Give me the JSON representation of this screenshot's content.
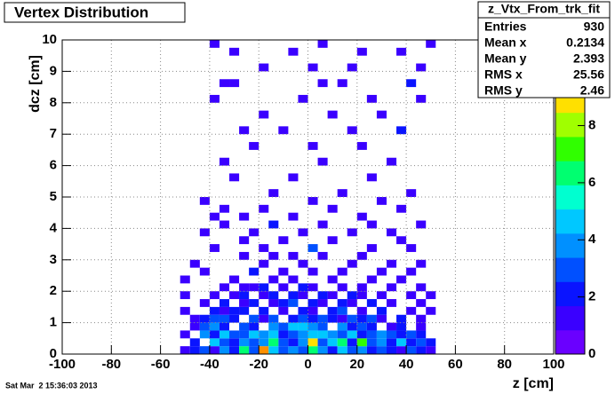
{
  "chart_data": {
    "type": "heatmap",
    "title": "Vertex Distribution",
    "x_label": "z [cm]",
    "y_label": "dcz [cm]",
    "footer": "Sat Mar  2 15:36:03 2013",
    "xlim": [
      -100,
      100
    ],
    "ylim": [
      0,
      10
    ],
    "zlim": [
      0,
      11
    ],
    "xticks": [
      -100,
      -80,
      -60,
      -40,
      -20,
      0,
      20,
      40,
      60,
      80,
      100
    ],
    "yticks": [
      0,
      1,
      2,
      3,
      4,
      5,
      6,
      7,
      8,
      9,
      10
    ],
    "zticks": [
      0,
      2,
      4,
      6,
      8
    ],
    "grid": true,
    "palette": [
      "#6a00ff",
      "#3a00ff",
      "#0a14ff",
      "#0050ff",
      "#0090ff",
      "#00c8ff",
      "#00ffd0",
      "#00ff70",
      "#30ff00",
      "#a0ff00",
      "#ffe000",
      "#ff9000",
      "#ff2000"
    ],
    "xbins": [
      -100,
      -96,
      -92,
      -88,
      -84,
      -80,
      -76,
      -72,
      -68,
      -64,
      -60,
      -56,
      -52,
      -48,
      -44,
      -40,
      -36,
      -32,
      -28,
      -24,
      -20,
      -16,
      -12,
      -8,
      -4,
      0,
      4,
      8,
      12,
      16,
      20,
      24,
      28,
      32,
      36,
      40,
      44,
      48,
      52,
      56,
      60,
      64,
      68,
      72,
      76,
      80,
      84,
      88,
      92,
      96,
      100
    ],
    "ybins": [
      0,
      0.25,
      0.5,
      0.75,
      1,
      1.25,
      1.5,
      1.75,
      2,
      2.25,
      2.5,
      2.75,
      3,
      3.25,
      3.5,
      3.75,
      4,
      4.25,
      4.5,
      4.75,
      5,
      5.25,
      5.5,
      5.75,
      6,
      6.25,
      6.5,
      6.75,
      7,
      7.25,
      7.5,
      7.75,
      8,
      8.25,
      8.5,
      8.75,
      9,
      9.25,
      9.5,
      9.75,
      10
    ],
    "stats": {
      "title": "z_Vtx_From_trk_fit",
      "rows": [
        {
          "label": "Entries",
          "value": 930
        },
        {
          "label": "Mean x",
          "value": 0.2134
        },
        {
          "label": "Mean y",
          "value": 2.393
        },
        {
          "label": "RMS x",
          "value": 25.56
        },
        {
          "label": "RMS y",
          "value": 2.46
        }
      ]
    },
    "cells": [
      {
        "x": -52,
        "y": 0,
        "z": 1
      },
      {
        "x": -48,
        "y": 0,
        "z": 2
      },
      {
        "x": -44,
        "y": 0,
        "z": 3
      },
      {
        "x": -40,
        "y": 0,
        "z": 1
      },
      {
        "x": -36,
        "y": 0,
        "z": 4
      },
      {
        "x": -32,
        "y": 0,
        "z": 2
      },
      {
        "x": -28,
        "y": 0,
        "z": 6
      },
      {
        "x": -24,
        "y": 0,
        "z": 3
      },
      {
        "x": -20,
        "y": 0,
        "z": 10
      },
      {
        "x": -16,
        "y": 0,
        "z": 5
      },
      {
        "x": -12,
        "y": 0,
        "z": 3
      },
      {
        "x": -8,
        "y": 0,
        "z": 4
      },
      {
        "x": -4,
        "y": 0,
        "z": 3
      },
      {
        "x": 0,
        "y": 0,
        "z": 6
      },
      {
        "x": 4,
        "y": 0,
        "z": 4
      },
      {
        "x": 8,
        "y": 0,
        "z": 2
      },
      {
        "x": 12,
        "y": 0,
        "z": 5
      },
      {
        "x": 16,
        "y": 0,
        "z": 3
      },
      {
        "x": 20,
        "y": 0,
        "z": 4
      },
      {
        "x": 24,
        "y": 0,
        "z": 2
      },
      {
        "x": 28,
        "y": 0,
        "z": 3
      },
      {
        "x": 32,
        "y": 0,
        "z": 2
      },
      {
        "x": 36,
        "y": 0,
        "z": 1
      },
      {
        "x": 40,
        "y": 0,
        "z": 3
      },
      {
        "x": 44,
        "y": 0,
        "z": 2
      },
      {
        "x": 48,
        "y": 0,
        "z": 1
      },
      {
        "x": -48,
        "y": 0.25,
        "z": 2
      },
      {
        "x": -40,
        "y": 0.25,
        "z": 5
      },
      {
        "x": -36,
        "y": 0.25,
        "z": 3
      },
      {
        "x": -32,
        "y": 0.25,
        "z": 2
      },
      {
        "x": -28,
        "y": 0.25,
        "z": 4
      },
      {
        "x": -24,
        "y": 0.25,
        "z": 3
      },
      {
        "x": -20,
        "y": 0.25,
        "z": 4
      },
      {
        "x": -16,
        "y": 0.25,
        "z": 6
      },
      {
        "x": -12,
        "y": 0.25,
        "z": 3
      },
      {
        "x": -8,
        "y": 0.25,
        "z": 2
      },
      {
        "x": -4,
        "y": 0.25,
        "z": 4
      },
      {
        "x": 0,
        "y": 0.25,
        "z": 9
      },
      {
        "x": 4,
        "y": 0.25,
        "z": 3
      },
      {
        "x": 8,
        "y": 0.25,
        "z": 5
      },
      {
        "x": 12,
        "y": 0.25,
        "z": 6
      },
      {
        "x": 16,
        "y": 0.25,
        "z": 2
      },
      {
        "x": 20,
        "y": 0.25,
        "z": 7
      },
      {
        "x": 24,
        "y": 0.25,
        "z": 3
      },
      {
        "x": 28,
        "y": 0.25,
        "z": 4
      },
      {
        "x": 32,
        "y": 0.25,
        "z": 2
      },
      {
        "x": 36,
        "y": 0.25,
        "z": 5
      },
      {
        "x": 40,
        "y": 0.25,
        "z": 2
      },
      {
        "x": 44,
        "y": 0.25,
        "z": 3
      },
      {
        "x": 48,
        "y": 0.25,
        "z": 2
      },
      {
        "x": -52,
        "y": 0.5,
        "z": 1
      },
      {
        "x": -44,
        "y": 0.5,
        "z": 4
      },
      {
        "x": -40,
        "y": 0.5,
        "z": 2
      },
      {
        "x": -36,
        "y": 0.5,
        "z": 5
      },
      {
        "x": -32,
        "y": 0.5,
        "z": 3
      },
      {
        "x": -28,
        "y": 0.5,
        "z": 3
      },
      {
        "x": -24,
        "y": 0.5,
        "z": 5
      },
      {
        "x": -20,
        "y": 0.5,
        "z": 4
      },
      {
        "x": -16,
        "y": 0.5,
        "z": 5
      },
      {
        "x": -12,
        "y": 0.5,
        "z": 2
      },
      {
        "x": -8,
        "y": 0.5,
        "z": 3
      },
      {
        "x": -4,
        "y": 0.5,
        "z": 4
      },
      {
        "x": 0,
        "y": 0.5,
        "z": 5
      },
      {
        "x": 4,
        "y": 0.5,
        "z": 5
      },
      {
        "x": 8,
        "y": 0.5,
        "z": 4
      },
      {
        "x": 12,
        "y": 0.5,
        "z": 3
      },
      {
        "x": 16,
        "y": 0.5,
        "z": 5
      },
      {
        "x": 20,
        "y": 0.5,
        "z": 2
      },
      {
        "x": 24,
        "y": 0.5,
        "z": 3
      },
      {
        "x": 28,
        "y": 0.5,
        "z": 4
      },
      {
        "x": 32,
        "y": 0.5,
        "z": 3
      },
      {
        "x": 36,
        "y": 0.5,
        "z": 2
      },
      {
        "x": 40,
        "y": 0.5,
        "z": 3
      },
      {
        "x": 44,
        "y": 0.5,
        "z": 2
      },
      {
        "x": -48,
        "y": 0.75,
        "z": 1
      },
      {
        "x": -44,
        "y": 0.75,
        "z": 3
      },
      {
        "x": -40,
        "y": 0.75,
        "z": 4
      },
      {
        "x": -36,
        "y": 0.75,
        "z": 2
      },
      {
        "x": -28,
        "y": 0.75,
        "z": 3
      },
      {
        "x": -24,
        "y": 0.75,
        "z": 2
      },
      {
        "x": -16,
        "y": 0.75,
        "z": 4
      },
      {
        "x": -12,
        "y": 0.75,
        "z": 3
      },
      {
        "x": -8,
        "y": 0.75,
        "z": 5
      },
      {
        "x": -4,
        "y": 0.75,
        "z": 5
      },
      {
        "x": 0,
        "y": 0.75,
        "z": 4
      },
      {
        "x": 4,
        "y": 0.75,
        "z": 3
      },
      {
        "x": 12,
        "y": 0.75,
        "z": 4
      },
      {
        "x": 16,
        "y": 0.75,
        "z": 2
      },
      {
        "x": 20,
        "y": 0.75,
        "z": 3
      },
      {
        "x": 24,
        "y": 0.75,
        "z": 2
      },
      {
        "x": 32,
        "y": 0.75,
        "z": 1
      },
      {
        "x": 36,
        "y": 0.75,
        "z": 2
      },
      {
        "x": 44,
        "y": 0.75,
        "z": 1
      },
      {
        "x": -48,
        "y": 1,
        "z": 1
      },
      {
        "x": -44,
        "y": 1,
        "z": 2
      },
      {
        "x": -40,
        "y": 1,
        "z": 3
      },
      {
        "x": -36,
        "y": 1,
        "z": 3
      },
      {
        "x": -32,
        "y": 1,
        "z": 2
      },
      {
        "x": -24,
        "y": 1,
        "z": 3
      },
      {
        "x": -20,
        "y": 1,
        "z": 1
      },
      {
        "x": -16,
        "y": 1,
        "z": 3
      },
      {
        "x": -8,
        "y": 1,
        "z": 2
      },
      {
        "x": -4,
        "y": 1,
        "z": 3
      },
      {
        "x": 0,
        "y": 1,
        "z": 2
      },
      {
        "x": 4,
        "y": 1,
        "z": 3
      },
      {
        "x": 8,
        "y": 1,
        "z": 2
      },
      {
        "x": 12,
        "y": 1,
        "z": 1
      },
      {
        "x": 16,
        "y": 1,
        "z": 3
      },
      {
        "x": 20,
        "y": 1,
        "z": 2
      },
      {
        "x": 24,
        "y": 1,
        "z": 3
      },
      {
        "x": 28,
        "y": 1,
        "z": 1
      },
      {
        "x": 36,
        "y": 1,
        "z": 2
      },
      {
        "x": 44,
        "y": 1,
        "z": 1
      },
      {
        "x": -52,
        "y": 1.25,
        "z": 1
      },
      {
        "x": -40,
        "y": 1.25,
        "z": 2
      },
      {
        "x": -36,
        "y": 1.25,
        "z": 1
      },
      {
        "x": -32,
        "y": 1.25,
        "z": 2
      },
      {
        "x": -28,
        "y": 1.25,
        "z": 2
      },
      {
        "x": -20,
        "y": 1.25,
        "z": 2
      },
      {
        "x": -12,
        "y": 1.25,
        "z": 1
      },
      {
        "x": -4,
        "y": 1.25,
        "z": 2
      },
      {
        "x": 0,
        "y": 1.25,
        "z": 1
      },
      {
        "x": 8,
        "y": 1.25,
        "z": 2
      },
      {
        "x": 12,
        "y": 1.25,
        "z": 3
      },
      {
        "x": 20,
        "y": 1.25,
        "z": 1
      },
      {
        "x": 28,
        "y": 1.25,
        "z": 2
      },
      {
        "x": 40,
        "y": 1.25,
        "z": 1
      },
      {
        "x": 48,
        "y": 1.25,
        "z": 1
      },
      {
        "x": -44,
        "y": 1.5,
        "z": 1
      },
      {
        "x": -36,
        "y": 1.5,
        "z": 2
      },
      {
        "x": -28,
        "y": 1.5,
        "z": 1
      },
      {
        "x": -24,
        "y": 1.5,
        "z": 2
      },
      {
        "x": -16,
        "y": 1.5,
        "z": 1
      },
      {
        "x": -12,
        "y": 1.5,
        "z": 2
      },
      {
        "x": -8,
        "y": 1.5,
        "z": 3
      },
      {
        "x": 0,
        "y": 1.5,
        "z": 2
      },
      {
        "x": 4,
        "y": 1.5,
        "z": 1
      },
      {
        "x": 12,
        "y": 1.5,
        "z": 2
      },
      {
        "x": 16,
        "y": 1.5,
        "z": 1
      },
      {
        "x": 24,
        "y": 1.5,
        "z": 2
      },
      {
        "x": 32,
        "y": 1.5,
        "z": 1
      },
      {
        "x": 44,
        "y": 1.5,
        "z": 1
      },
      {
        "x": -52,
        "y": 1.75,
        "z": 1
      },
      {
        "x": -40,
        "y": 1.75,
        "z": 1
      },
      {
        "x": -32,
        "y": 1.75,
        "z": 1
      },
      {
        "x": -28,
        "y": 1.75,
        "z": 2
      },
      {
        "x": -20,
        "y": 1.75,
        "z": 1
      },
      {
        "x": -16,
        "y": 1.75,
        "z": 2
      },
      {
        "x": -8,
        "y": 1.75,
        "z": 2
      },
      {
        "x": -4,
        "y": 1.75,
        "z": 1
      },
      {
        "x": 4,
        "y": 1.75,
        "z": 2
      },
      {
        "x": 8,
        "y": 1.75,
        "z": 1
      },
      {
        "x": 16,
        "y": 1.75,
        "z": 2
      },
      {
        "x": 20,
        "y": 1.75,
        "z": 1
      },
      {
        "x": 28,
        "y": 1.75,
        "z": 1
      },
      {
        "x": 40,
        "y": 1.75,
        "z": 1
      },
      {
        "x": 48,
        "y": 1.75,
        "z": 1
      },
      {
        "x": -36,
        "y": 2,
        "z": 1
      },
      {
        "x": -28,
        "y": 2,
        "z": 1
      },
      {
        "x": -24,
        "y": 2,
        "z": 1
      },
      {
        "x": -20,
        "y": 2,
        "z": 2
      },
      {
        "x": -12,
        "y": 2,
        "z": 1
      },
      {
        "x": -4,
        "y": 2,
        "z": 2
      },
      {
        "x": 0,
        "y": 2,
        "z": 1
      },
      {
        "x": 12,
        "y": 2,
        "z": 1
      },
      {
        "x": 20,
        "y": 2,
        "z": 1
      },
      {
        "x": 32,
        "y": 2,
        "z": 1
      },
      {
        "x": 44,
        "y": 2,
        "z": 1
      },
      {
        "x": -52,
        "y": 2.25,
        "z": 1
      },
      {
        "x": -32,
        "y": 2.25,
        "z": 1
      },
      {
        "x": -16,
        "y": 2.25,
        "z": 1
      },
      {
        "x": -8,
        "y": 2.25,
        "z": 1
      },
      {
        "x": 8,
        "y": 2.25,
        "z": 1
      },
      {
        "x": 24,
        "y": 2.25,
        "z": 1
      },
      {
        "x": 36,
        "y": 2.25,
        "z": 1
      },
      {
        "x": -44,
        "y": 2.5,
        "z": 1
      },
      {
        "x": -24,
        "y": 2.5,
        "z": 2
      },
      {
        "x": -12,
        "y": 2.5,
        "z": 1
      },
      {
        "x": 0,
        "y": 2.5,
        "z": 1
      },
      {
        "x": 12,
        "y": 2.5,
        "z": 1
      },
      {
        "x": 28,
        "y": 2.5,
        "z": 1
      },
      {
        "x": 40,
        "y": 2.5,
        "z": 1
      },
      {
        "x": -48,
        "y": 2.75,
        "z": 1
      },
      {
        "x": -20,
        "y": 2.75,
        "z": 1
      },
      {
        "x": -4,
        "y": 2.75,
        "z": 1
      },
      {
        "x": 16,
        "y": 2.75,
        "z": 1
      },
      {
        "x": 32,
        "y": 2.75,
        "z": 1
      },
      {
        "x": 44,
        "y": 2.75,
        "z": 1
      },
      {
        "x": -28,
        "y": 3,
        "z": 1
      },
      {
        "x": -16,
        "y": 3,
        "z": 1
      },
      {
        "x": -8,
        "y": 3,
        "z": 1
      },
      {
        "x": 4,
        "y": 3,
        "z": 1
      },
      {
        "x": 20,
        "y": 3,
        "z": 1
      },
      {
        "x": -40,
        "y": 3.25,
        "z": 1
      },
      {
        "x": -20,
        "y": 3.25,
        "z": 1
      },
      {
        "x": 0,
        "y": 3.25,
        "z": 3
      },
      {
        "x": 24,
        "y": 3.25,
        "z": 1
      },
      {
        "x": 40,
        "y": 3.25,
        "z": 1
      },
      {
        "x": -28,
        "y": 3.5,
        "z": 1
      },
      {
        "x": -12,
        "y": 3.5,
        "z": 1
      },
      {
        "x": 8,
        "y": 3.5,
        "z": 1
      },
      {
        "x": 36,
        "y": 3.5,
        "z": 1
      },
      {
        "x": -44,
        "y": 3.75,
        "z": 1
      },
      {
        "x": -24,
        "y": 3.75,
        "z": 1
      },
      {
        "x": -4,
        "y": 3.75,
        "z": 1
      },
      {
        "x": 16,
        "y": 3.75,
        "z": 1
      },
      {
        "x": 32,
        "y": 3.75,
        "z": 1
      },
      {
        "x": -36,
        "y": 4,
        "z": 1
      },
      {
        "x": -16,
        "y": 4,
        "z": 2
      },
      {
        "x": 4,
        "y": 4,
        "z": 1
      },
      {
        "x": 24,
        "y": 4,
        "z": 1
      },
      {
        "x": 44,
        "y": 4,
        "z": 1
      },
      {
        "x": -40,
        "y": 4.25,
        "z": 1
      },
      {
        "x": -28,
        "y": 4.25,
        "z": 1
      },
      {
        "x": -8,
        "y": 4.25,
        "z": 1
      },
      {
        "x": 20,
        "y": 4.25,
        "z": 1
      },
      {
        "x": -36,
        "y": 4.5,
        "z": 1
      },
      {
        "x": -20,
        "y": 4.5,
        "z": 1
      },
      {
        "x": 8,
        "y": 4.5,
        "z": 1
      },
      {
        "x": 36,
        "y": 4.5,
        "z": 1
      },
      {
        "x": -44,
        "y": 4.75,
        "z": 1
      },
      {
        "x": 0,
        "y": 4.75,
        "z": 1
      },
      {
        "x": 28,
        "y": 4.75,
        "z": 1
      },
      {
        "x": -16,
        "y": 5,
        "z": 1
      },
      {
        "x": 12,
        "y": 5,
        "z": 1
      },
      {
        "x": 40,
        "y": 5,
        "z": 1
      },
      {
        "x": -32,
        "y": 5.5,
        "z": 1
      },
      {
        "x": -8,
        "y": 5.5,
        "z": 1
      },
      {
        "x": 24,
        "y": 5.5,
        "z": 1
      },
      {
        "x": -36,
        "y": 6,
        "z": 1
      },
      {
        "x": 4,
        "y": 6,
        "z": 1
      },
      {
        "x": 32,
        "y": 6,
        "z": 1
      },
      {
        "x": -24,
        "y": 6.5,
        "z": 1
      },
      {
        "x": 0,
        "y": 6.5,
        "z": 1
      },
      {
        "x": 20,
        "y": 6.5,
        "z": 1
      },
      {
        "x": -28,
        "y": 7,
        "z": 1
      },
      {
        "x": -12,
        "y": 7,
        "z": 1
      },
      {
        "x": 16,
        "y": 7,
        "z": 1
      },
      {
        "x": 36,
        "y": 7,
        "z": 2
      },
      {
        "x": -20,
        "y": 7.5,
        "z": 1
      },
      {
        "x": 8,
        "y": 7.5,
        "z": 1
      },
      {
        "x": 28,
        "y": 7.5,
        "z": 1
      },
      {
        "x": -40,
        "y": 8,
        "z": 1
      },
      {
        "x": -4,
        "y": 8,
        "z": 1
      },
      {
        "x": 24,
        "y": 8,
        "z": 1
      },
      {
        "x": 44,
        "y": 8,
        "z": 1
      },
      {
        "x": -36,
        "y": 8.5,
        "z": 1
      },
      {
        "x": -32,
        "y": 8.5,
        "z": 1
      },
      {
        "x": 4,
        "y": 8.5,
        "z": 1
      },
      {
        "x": 12,
        "y": 8.5,
        "z": 1
      },
      {
        "x": 40,
        "y": 8.5,
        "z": 2
      },
      {
        "x": -20,
        "y": 9,
        "z": 1
      },
      {
        "x": 0,
        "y": 9,
        "z": 1
      },
      {
        "x": 16,
        "y": 9,
        "z": 1
      },
      {
        "x": 44,
        "y": 9,
        "z": 1
      },
      {
        "x": -32,
        "y": 9.5,
        "z": 1
      },
      {
        "x": -8,
        "y": 9.5,
        "z": 1
      },
      {
        "x": 20,
        "y": 9.5,
        "z": 1
      },
      {
        "x": 36,
        "y": 9.5,
        "z": 1
      },
      {
        "x": -40,
        "y": 9.75,
        "z": 1
      },
      {
        "x": 4,
        "y": 9.75,
        "z": 1
      },
      {
        "x": 48,
        "y": 9.75,
        "z": 1
      }
    ]
  }
}
